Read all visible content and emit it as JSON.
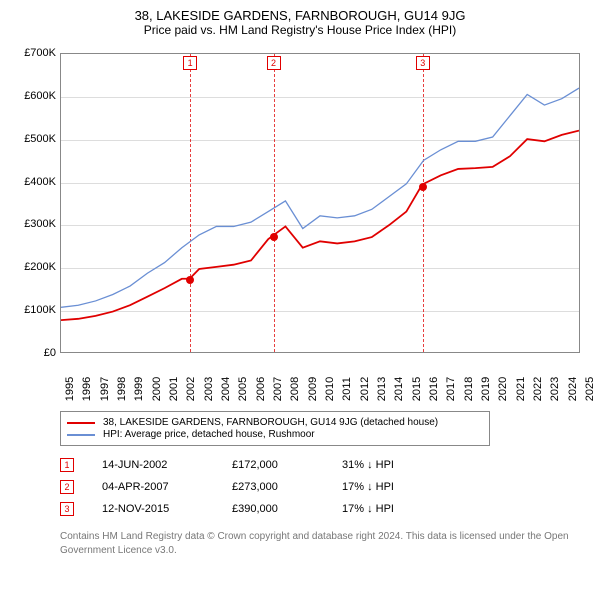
{
  "title": "38, LAKESIDE GARDENS, FARNBOROUGH, GU14 9JG",
  "subtitle": "Price paid vs. HM Land Registry's House Price Index (HPI)",
  "chart": {
    "type": "line",
    "background_color": "#ffffff",
    "grid_color": "#dddddd",
    "plot_border_color": "#888888",
    "ylim": [
      0,
      700000
    ],
    "ytick_step": 100000,
    "ytick_labels": [
      "£0",
      "£100K",
      "£200K",
      "£300K",
      "£400K",
      "£500K",
      "£600K",
      "£700K"
    ],
    "xlim": [
      1995,
      2025
    ],
    "xtick_step": 1,
    "xtick_labels": [
      "1995",
      "1996",
      "1997",
      "1998",
      "1999",
      "2000",
      "2001",
      "2002",
      "2003",
      "2004",
      "2005",
      "2006",
      "2007",
      "2008",
      "2009",
      "2010",
      "2011",
      "2012",
      "2013",
      "2014",
      "2015",
      "2016",
      "2017",
      "2018",
      "2019",
      "2020",
      "2021",
      "2022",
      "2023",
      "2024",
      "2025"
    ],
    "label_fontsize": 11,
    "line_width_property": 1.8,
    "line_width_hpi": 1.3,
    "property_color": "#e00000",
    "hpi_color": "#6a8fd4",
    "marker_dash_color": "#e00000",
    "series_property": {
      "label": "38, LAKESIDE GARDENS, FARNBOROUGH, GU14 9JG (detached house)",
      "years": [
        1995,
        1996,
        1997,
        1998,
        1999,
        2000,
        2001,
        2002,
        2002.45,
        2003,
        2004,
        2005,
        2006,
        2007,
        2007.26,
        2008,
        2009,
        2010,
        2011,
        2012,
        2013,
        2014,
        2015,
        2015.87,
        2016,
        2017,
        2018,
        2019,
        2020,
        2021,
        2022,
        2023,
        2024,
        2025
      ],
      "values": [
        75000,
        78000,
        85000,
        95000,
        110000,
        130000,
        150000,
        172000,
        172000,
        195000,
        200000,
        205000,
        215000,
        265000,
        273000,
        295000,
        245000,
        260000,
        255000,
        260000,
        270000,
        298000,
        330000,
        390000,
        395000,
        415000,
        430000,
        432000,
        435000,
        460000,
        500000,
        495000,
        510000,
        520000
      ]
    },
    "series_hpi": {
      "label": "HPI: Average price, detached house, Rushmoor",
      "years": [
        1995,
        1996,
        1997,
        1998,
        1999,
        2000,
        2001,
        2002,
        2003,
        2004,
        2005,
        2006,
        2007,
        2008,
        2009,
        2010,
        2011,
        2012,
        2013,
        2014,
        2015,
        2016,
        2017,
        2018,
        2019,
        2020,
        2021,
        2022,
        2023,
        2024,
        2025
      ],
      "values": [
        105000,
        110000,
        120000,
        135000,
        155000,
        185000,
        210000,
        245000,
        275000,
        295000,
        295000,
        305000,
        330000,
        355000,
        290000,
        320000,
        315000,
        320000,
        335000,
        365000,
        395000,
        450000,
        475000,
        495000,
        495000,
        505000,
        555000,
        605000,
        580000,
        595000,
        620000
      ]
    },
    "sale_markers": [
      {
        "n": "1",
        "year": 2002.45,
        "value": 172000
      },
      {
        "n": "2",
        "year": 2007.26,
        "value": 273000
      },
      {
        "n": "3",
        "year": 2015.87,
        "value": 390000
      }
    ]
  },
  "legend": {
    "items": [
      {
        "color": "#e00000",
        "label": "38, LAKESIDE GARDENS, FARNBOROUGH, GU14 9JG (detached house)"
      },
      {
        "color": "#6a8fd4",
        "label": "HPI: Average price, detached house, Rushmoor"
      }
    ]
  },
  "sales": [
    {
      "n": "1",
      "date": "14-JUN-2002",
      "price": "£172,000",
      "diff": "31% ↓ HPI"
    },
    {
      "n": "2",
      "date": "04-APR-2007",
      "price": "£273,000",
      "diff": "17% ↓ HPI"
    },
    {
      "n": "3",
      "date": "12-NOV-2015",
      "price": "£390,000",
      "diff": "17% ↓ HPI"
    }
  ],
  "attribution": "Contains HM Land Registry data © Crown copyright and database right 2024. This data is licensed under the Open Government Licence v3.0."
}
